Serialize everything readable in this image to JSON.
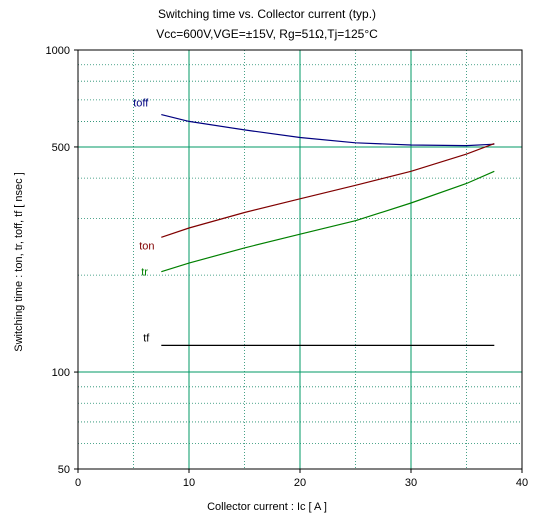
{
  "chart_data": {
    "type": "line",
    "title": "Switching time  vs.  Collector current  (typ.)",
    "subtitle": "Vcc=600V,VGE=±15V, Rg=51Ω,Tj=125°C",
    "xlabel": "Collector current  :  Ic  [ A ]",
    "ylabel": "Switching time  :  ton, tr, toff, tf  [ nsec ]",
    "xlim": [
      0,
      40
    ],
    "ylim": [
      50,
      1000
    ],
    "yscale": "log",
    "x_ticks": [
      0,
      10,
      20,
      30,
      40
    ],
    "y_ticks": [
      50,
      100,
      500,
      1000
    ],
    "grid": true,
    "series": [
      {
        "name": "toff",
        "color": "#000080",
        "x": [
          7.5,
          10,
          15,
          20,
          25,
          30,
          35,
          37.5
        ],
        "y": [
          630,
          600,
          565,
          535,
          515,
          507,
          505,
          510
        ]
      },
      {
        "name": "ton",
        "color": "#800000",
        "x": [
          7.5,
          10,
          15,
          20,
          25,
          30,
          35,
          37.5
        ],
        "y": [
          262,
          280,
          313,
          345,
          380,
          420,
          475,
          512
        ]
      },
      {
        "name": "tr",
        "color": "#008000",
        "x": [
          7.5,
          10,
          15,
          20,
          25,
          30,
          35,
          37.5
        ],
        "y": [
          205,
          218,
          243,
          268,
          295,
          335,
          385,
          420
        ]
      },
      {
        "name": "tf",
        "color": "#000000",
        "x": [
          7.5,
          37.5
        ],
        "y": [
          121,
          121
        ]
      }
    ]
  }
}
